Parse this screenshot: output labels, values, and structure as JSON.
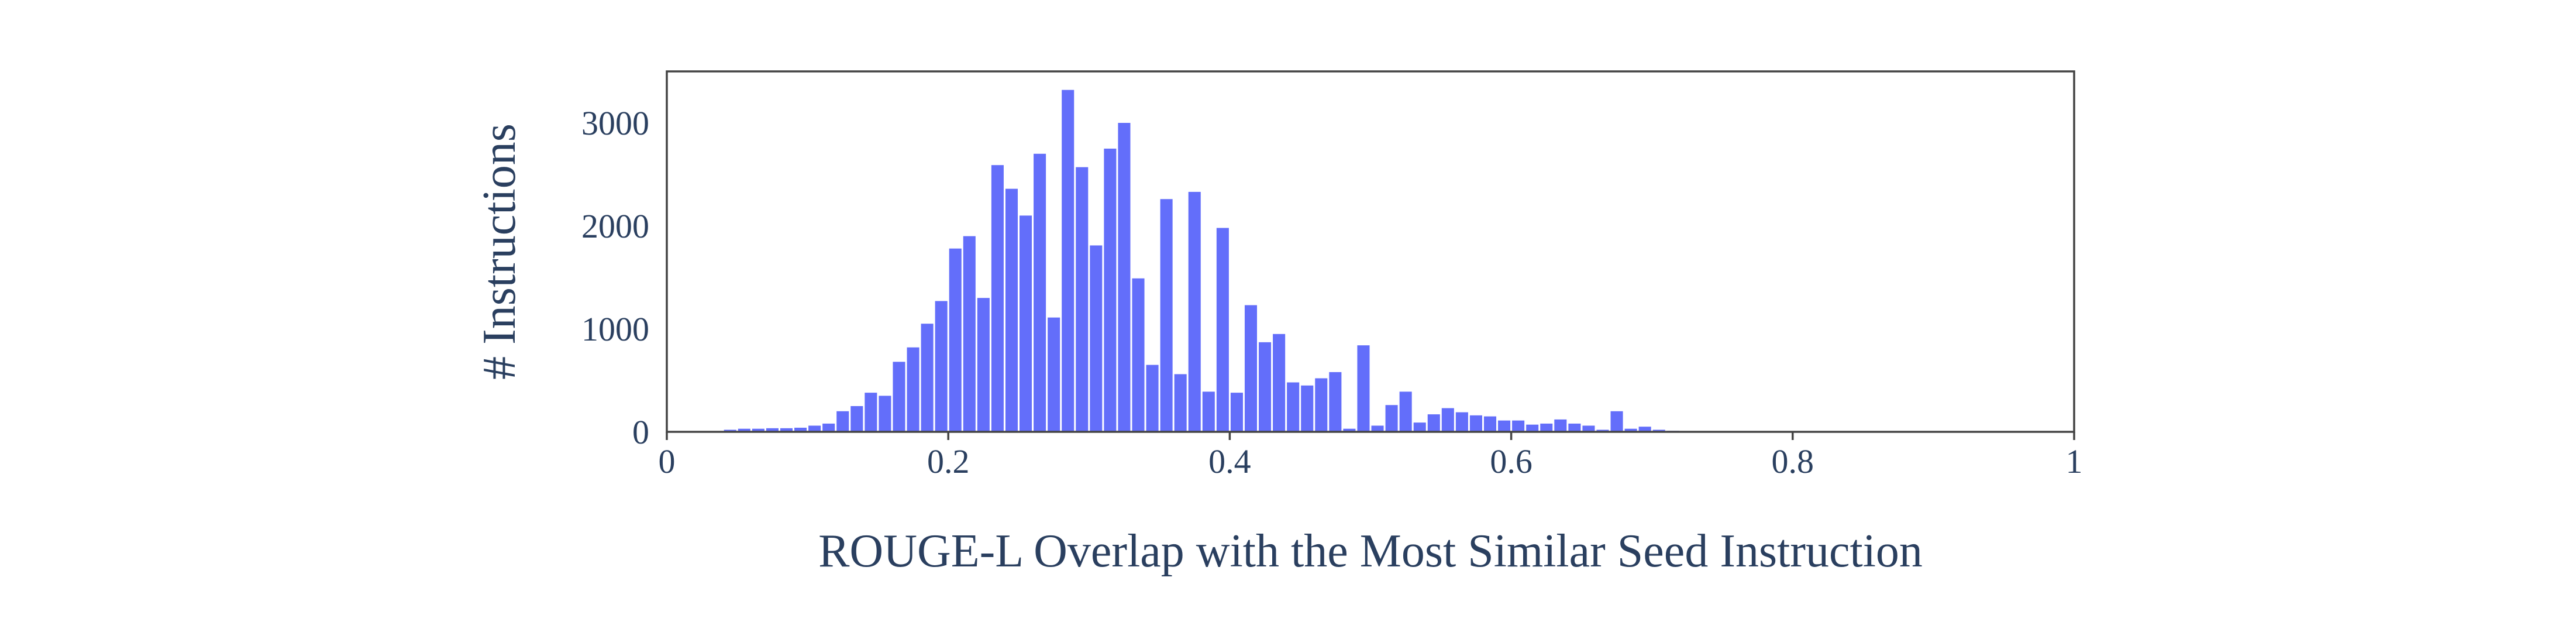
{
  "chart_data": {
    "type": "bar",
    "title": "",
    "xlabel": "ROUGE-L Overlap with the Most Similar Seed Instruction",
    "ylabel": "# Instructions",
    "xlim": [
      0,
      1
    ],
    "ylim": [
      0,
      3500
    ],
    "x_ticks": [
      0,
      0.2,
      0.4,
      0.6,
      0.8,
      1
    ],
    "x_tick_labels": [
      "0",
      "0.2",
      "0.4",
      "0.6",
      "0.8",
      "1"
    ],
    "y_ticks": [
      0,
      1000,
      2000,
      3000
    ],
    "y_tick_labels": [
      "0",
      "1000",
      "2000",
      "3000"
    ],
    "grid": false,
    "bin_width": 0.01,
    "bin_starts": [
      0.04,
      0.05,
      0.06,
      0.07,
      0.08,
      0.09,
      0.1,
      0.11,
      0.12,
      0.13,
      0.14,
      0.15,
      0.16,
      0.17,
      0.18,
      0.19,
      0.2,
      0.21,
      0.22,
      0.23,
      0.24,
      0.25,
      0.26,
      0.27,
      0.28,
      0.29,
      0.3,
      0.31,
      0.32,
      0.33,
      0.34,
      0.35,
      0.36,
      0.37,
      0.38,
      0.39,
      0.4,
      0.41,
      0.42,
      0.43,
      0.44,
      0.45,
      0.46,
      0.47,
      0.48,
      0.49,
      0.5,
      0.51,
      0.52,
      0.53,
      0.54,
      0.55,
      0.56,
      0.57,
      0.58,
      0.59,
      0.6,
      0.61,
      0.62,
      0.63,
      0.64,
      0.65,
      0.66,
      0.67,
      0.68,
      0.69,
      0.7,
      0.71
    ],
    "values": [
      20,
      30,
      30,
      35,
      35,
      40,
      60,
      80,
      200,
      250,
      380,
      350,
      680,
      820,
      1050,
      1270,
      1780,
      1900,
      1300,
      2590,
      2360,
      2100,
      2700,
      1110,
      3320,
      2570,
      1810,
      2750,
      3000,
      1490,
      650,
      2260,
      560,
      2330,
      390,
      1980,
      380,
      1230,
      870,
      950,
      480,
      450,
      520,
      580,
      30,
      840,
      60,
      260,
      390,
      90,
      170,
      230,
      190,
      160,
      150,
      110,
      110,
      70,
      80,
      120,
      80,
      60,
      20,
      200,
      30,
      50,
      20,
      10
    ]
  }
}
